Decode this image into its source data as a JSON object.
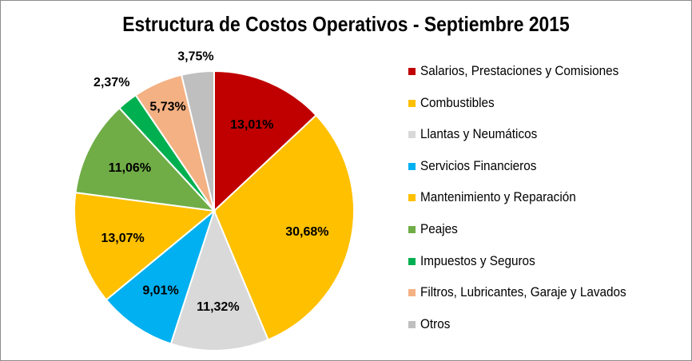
{
  "chart_data": {
    "type": "pie",
    "title": "Estructura de Costos Operativos - Septiembre 2015",
    "start_angle": "12 o'clock, clockwise",
    "legend_position": "right",
    "slices": [
      {
        "name": "Salarios, Prestaciones y Comisiones",
        "value": 13.01,
        "label": "13,01%",
        "color": "#C00000"
      },
      {
        "name": "Combustibles",
        "value": 30.68,
        "label": "30,68%",
        "color": "#FFC000"
      },
      {
        "name": "Llantas y Neumáticos",
        "value": 11.32,
        "label": "11,32%",
        "color": "#D9D9D9"
      },
      {
        "name": "Servicios Financieros",
        "value": 9.01,
        "label": "9,01%",
        "color": "#00B0F0"
      },
      {
        "name": "Mantenimiento y Reparación",
        "value": 13.07,
        "label": "13,07%",
        "color": "#FFC000"
      },
      {
        "name": "Peajes",
        "value": 11.06,
        "label": "11,06%",
        "color": "#70AD47"
      },
      {
        "name": "Impuestos y Seguros",
        "value": 2.37,
        "label": "2,37%",
        "color": "#00B050"
      },
      {
        "name": "Filtros, Lubricantes, Garaje y Lavados",
        "value": 5.73,
        "label": "5,73%",
        "color": "#F4B183"
      },
      {
        "name": "Otros",
        "value": 3.75,
        "label": "3,75%",
        "color": "#BFBFBF"
      }
    ]
  }
}
